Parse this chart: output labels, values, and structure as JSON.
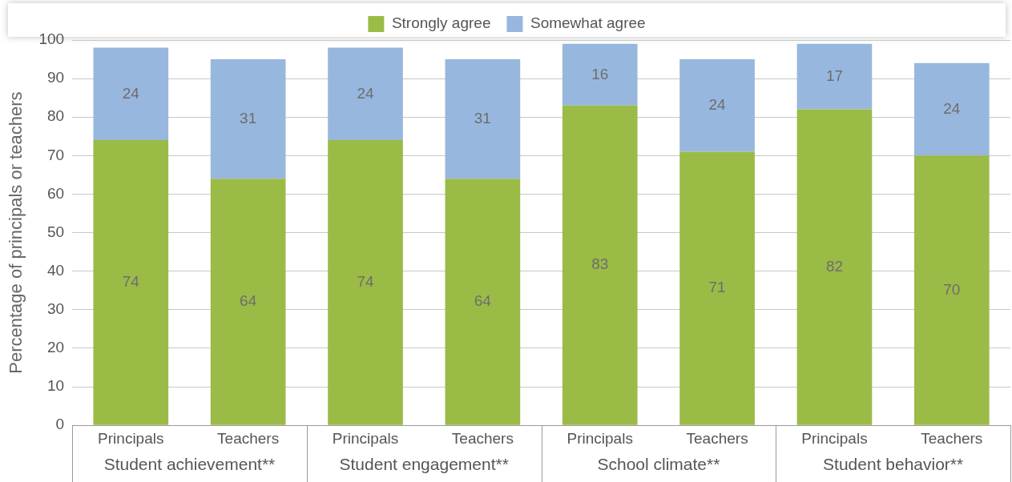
{
  "chart_data": {
    "type": "bar",
    "stacked": true,
    "ylabel": "Percentage of principals or teachers",
    "categories": [
      "Principals",
      "Teachers",
      "Principals",
      "Teachers",
      "Principals",
      "Teachers",
      "Principals",
      "Teachers"
    ],
    "series": [
      {
        "name": "Strongly agree",
        "color": "#9bbb47",
        "values": [
          74,
          64,
          74,
          64,
          83,
          71,
          82,
          70
        ]
      },
      {
        "name": "Somewhat agree",
        "color": "#98b7de",
        "values": [
          24,
          31,
          24,
          31,
          16,
          24,
          17,
          24
        ]
      }
    ],
    "annotations": [
      "Student achievement**",
      "Student engagement**",
      "School climate**",
      "Student behavior**"
    ],
    "ylim": [
      0,
      100
    ],
    "yticks": [
      0,
      10,
      20,
      30,
      40,
      50,
      60,
      70,
      80,
      90,
      100
    ],
    "grid": "y",
    "legend": "top",
    "data_labels": true
  }
}
